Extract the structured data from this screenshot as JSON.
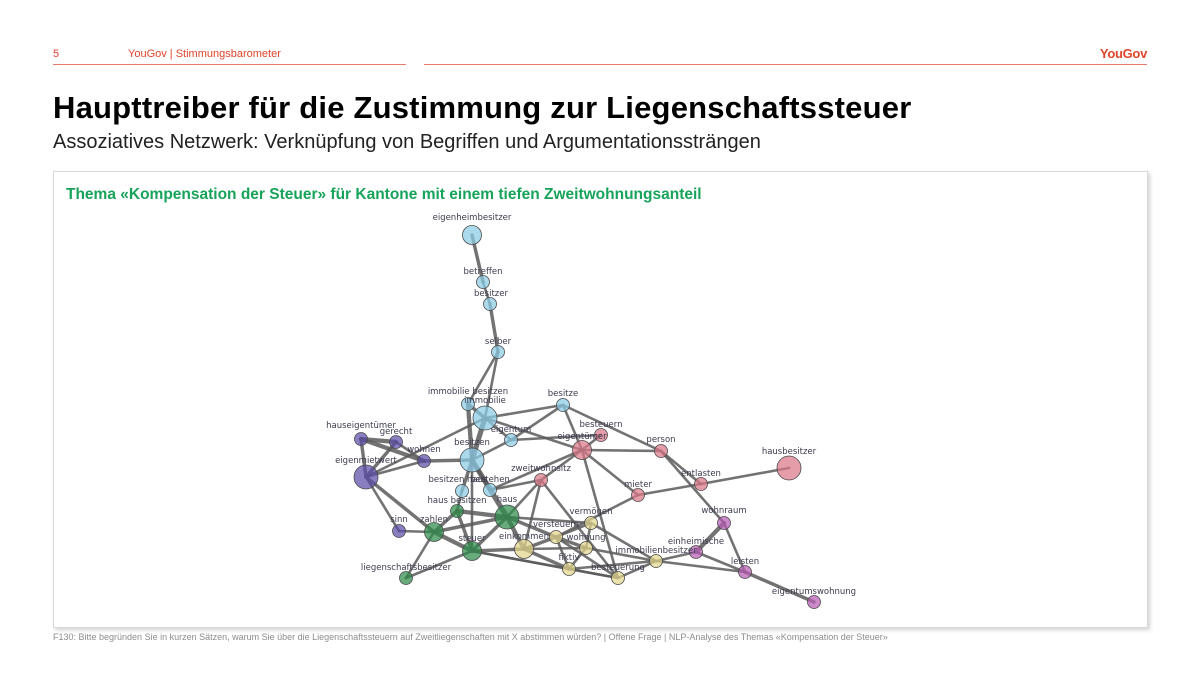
{
  "header": {
    "page_number": "5",
    "section": "YouGov | Stimmungsbarometer",
    "logo": "YouGov"
  },
  "title": "Haupttreiber für die Zustimmung zur Liegenschaftssteuer",
  "subtitle": "Assoziatives Netzwerk: Verknüpfung von Begriffen und Argumentationssträngen",
  "panel": {
    "title": "Thema «Kompensation der Steuer» für Kantone mit einem tiefen Zweitwohnungsanteil"
  },
  "colors": {
    "brand": "#e0442a",
    "panel_title": "#17a35a",
    "edge": "#5a5a5a",
    "blue": "#8ccce6",
    "purple": "#5b4ca6",
    "red": "#d97788",
    "green": "#2e8b4a",
    "yellow": "#e2d58c",
    "magenta": "#b75cb4"
  },
  "network": {
    "nodes": [
      {
        "id": "eigenheimbesitzer",
        "label": "eigenheimbesitzer",
        "group": "blue",
        "size": 3
      },
      {
        "id": "betreffen",
        "label": "betreffen",
        "group": "blue",
        "size": 2
      },
      {
        "id": "besitzer",
        "label": "besitzer",
        "group": "blue",
        "size": 2
      },
      {
        "id": "selber",
        "label": "selber",
        "group": "blue",
        "size": 2
      },
      {
        "id": "immobilie_besitzen",
        "label": "immobilie besitzen",
        "group": "blue",
        "size": 2
      },
      {
        "id": "immobilie",
        "label": "immobilie",
        "group": "blue",
        "size": 4
      },
      {
        "id": "besitze",
        "label": "besitze",
        "group": "blue",
        "size": 2
      },
      {
        "id": "eigentum",
        "label": "eigentum",
        "group": "blue",
        "size": 2
      },
      {
        "id": "besitzen",
        "label": "besitzen",
        "group": "blue",
        "size": 4
      },
      {
        "id": "besitzen_haus",
        "label": "besitzen haus",
        "group": "blue",
        "size": 2
      },
      {
        "id": "bestehen",
        "label": "bestehen",
        "group": "blue",
        "size": 2
      },
      {
        "id": "hauseigentuemer",
        "label": "hauseigentümer",
        "group": "purple",
        "size": 2
      },
      {
        "id": "gerecht",
        "label": "gerecht",
        "group": "purple",
        "size": 2
      },
      {
        "id": "wohnen",
        "label": "wohnen",
        "group": "purple",
        "size": 2
      },
      {
        "id": "eigenmietwert",
        "label": "eigenmietwert",
        "group": "purple",
        "size": 4
      },
      {
        "id": "sinn",
        "label": "sinn",
        "group": "purple",
        "size": 2
      },
      {
        "id": "besteuern",
        "label": "besteuern",
        "group": "red",
        "size": 2
      },
      {
        "id": "eigentuemer",
        "label": "eigentümer",
        "group": "red",
        "size": 3
      },
      {
        "id": "person",
        "label": "person",
        "group": "red",
        "size": 2
      },
      {
        "id": "hausbesitzer",
        "label": "hausbesitzer",
        "group": "red",
        "size": 4
      },
      {
        "id": "zweitwohnsitz",
        "label": "zweitwohnsitz",
        "group": "red",
        "size": 2
      },
      {
        "id": "mieter",
        "label": "mieter",
        "group": "red",
        "size": 2
      },
      {
        "id": "entlasten",
        "label": "entlasten",
        "group": "red",
        "size": 2
      },
      {
        "id": "haus_besitzen",
        "label": "haus besitzen",
        "group": "green",
        "size": 2
      },
      {
        "id": "haus",
        "label": "haus",
        "group": "green",
        "size": 4
      },
      {
        "id": "zahlen",
        "label": "zahlen",
        "group": "green",
        "size": 3
      },
      {
        "id": "steuer",
        "label": "steuer",
        "group": "green",
        "size": 3
      },
      {
        "id": "liegenschaftsbesitzer",
        "label": "liegenschaftsbesitzer",
        "group": "green",
        "size": 2
      },
      {
        "id": "vermoegen",
        "label": "vermögen",
        "group": "yellow",
        "size": 2
      },
      {
        "id": "versteuern",
        "label": "versteuern",
        "group": "yellow",
        "size": 2
      },
      {
        "id": "einkommen",
        "label": "einkommen",
        "group": "yellow",
        "size": 3
      },
      {
        "id": "wohnung",
        "label": "wohnung",
        "group": "yellow",
        "size": 2
      },
      {
        "id": "fiktiv",
        "label": "fiktiv",
        "group": "yellow",
        "size": 2
      },
      {
        "id": "besteuerung",
        "label": "besteuerung",
        "group": "yellow",
        "size": 2
      },
      {
        "id": "immobilienbesitzer",
        "label": "immobilienbesitzer",
        "group": "yellow",
        "size": 2
      },
      {
        "id": "wohnraum",
        "label": "wohnraum",
        "group": "magenta",
        "size": 2
      },
      {
        "id": "einheimische",
        "label": "einheimische",
        "group": "magenta",
        "size": 2
      },
      {
        "id": "leisten",
        "label": "leisten",
        "group": "magenta",
        "size": 2
      },
      {
        "id": "eigentumswohnung",
        "label": "eigentumswohnung",
        "group": "magenta",
        "size": 2
      }
    ],
    "edges": [
      [
        "eigenheimbesitzer",
        "betreffen",
        3
      ],
      [
        "betreffen",
        "besitzer",
        2
      ],
      [
        "besitzer",
        "selber",
        3
      ],
      [
        "selber",
        "immobilie",
        2
      ],
      [
        "selber",
        "immobilie_besitzen",
        2
      ],
      [
        "immobilie_besitzen",
        "immobilie",
        3
      ],
      [
        "immobilie_besitzen",
        "besitzen",
        4
      ],
      [
        "immobilie",
        "besitzen",
        5
      ],
      [
        "immobilie",
        "besitze",
        2
      ],
      [
        "immobilie",
        "eigentum",
        2
      ],
      [
        "immobilie",
        "eigentuemer",
        2
      ],
      [
        "besitze",
        "eigentum",
        2
      ],
      [
        "besitze",
        "eigentuemer",
        2
      ],
      [
        "besitze",
        "person",
        2
      ],
      [
        "eigentum",
        "besitzen",
        2
      ],
      [
        "eigentum",
        "besteuern",
        2
      ],
      [
        "besitzen",
        "besitzen_haus",
        3
      ],
      [
        "besitzen",
        "wohnen",
        3
      ],
      [
        "besitzen",
        "haus",
        5
      ],
      [
        "besitzen",
        "bestehen",
        3
      ],
      [
        "hauseigentuemer",
        "gerecht",
        4
      ],
      [
        "hauseigentuemer",
        "wohnen",
        4
      ],
      [
        "hauseigentuemer",
        "eigenmietwert",
        3
      ],
      [
        "gerecht",
        "wohnen",
        2
      ],
      [
        "gerecht",
        "eigenmietwert",
        3
      ],
      [
        "wohnen",
        "eigenmietwert",
        2
      ],
      [
        "eigenmietwert",
        "zahlen",
        3
      ],
      [
        "eigenmietwert",
        "sinn",
        2
      ],
      [
        "eigenmietwert",
        "immobilie",
        2
      ],
      [
        "eigentuemer",
        "besteuern",
        2
      ],
      [
        "eigentuemer",
        "person",
        2
      ],
      [
        "eigentuemer",
        "zweitwohnsitz",
        2
      ],
      [
        "eigentuemer",
        "mieter",
        2
      ],
      [
        "eigentuemer",
        "bestehen",
        2
      ],
      [
        "person",
        "entlasten",
        2
      ],
      [
        "person",
        "wohnraum",
        2
      ],
      [
        "entlasten",
        "hausbesitzer",
        2
      ],
      [
        "entlasten",
        "mieter",
        2
      ],
      [
        "zweitwohnsitz",
        "haus",
        2
      ],
      [
        "zweitwohnsitz",
        "besteuerung",
        2
      ],
      [
        "zweitwohnsitz",
        "einkommen",
        2
      ],
      [
        "zweitwohnsitz",
        "bestehen",
        2
      ],
      [
        "mieter",
        "versteuern",
        2
      ],
      [
        "besitzen_haus",
        "haus_besitzen",
        2
      ],
      [
        "haus_besitzen",
        "haus",
        4
      ],
      [
        "haus_besitzen",
        "zahlen",
        3
      ],
      [
        "haus_besitzen",
        "steuer",
        3
      ],
      [
        "haus",
        "zahlen",
        3
      ],
      [
        "haus",
        "steuer",
        3
      ],
      [
        "haus",
        "einkommen",
        4
      ],
      [
        "haus",
        "versteuern",
        3
      ],
      [
        "haus",
        "vermoegen",
        2
      ],
      [
        "zahlen",
        "steuer",
        4
      ],
      [
        "zahlen",
        "sinn",
        2
      ],
      [
        "zahlen",
        "liegenschaftsbesitzer",
        2
      ],
      [
        "steuer",
        "einkommen",
        3
      ],
      [
        "steuer",
        "fiktiv",
        2
      ],
      [
        "steuer",
        "liegenschaftsbesitzer",
        2
      ],
      [
        "steuer",
        "besteuerung",
        2
      ],
      [
        "steuer",
        "besitzen",
        2
      ],
      [
        "einkommen",
        "versteuern",
        3
      ],
      [
        "einkommen",
        "wohnung",
        2
      ],
      [
        "einkommen",
        "fiktiv",
        3
      ],
      [
        "versteuern",
        "vermoegen",
        2
      ],
      [
        "versteuern",
        "wohnung",
        3
      ],
      [
        "versteuern",
        "fiktiv",
        2
      ],
      [
        "versteuern",
        "besteuerung",
        2
      ],
      [
        "vermoegen",
        "immobilienbesitzer",
        2
      ],
      [
        "vermoegen",
        "wohnung",
        2
      ],
      [
        "wohnung",
        "fiktiv",
        2
      ],
      [
        "wohnung",
        "immobilienbesitzer",
        2
      ],
      [
        "fiktiv",
        "immobilienbesitzer",
        2
      ],
      [
        "fiktiv",
        "besteuerung",
        2
      ],
      [
        "besteuerung",
        "immobilienbesitzer",
        2
      ],
      [
        "besteuerung",
        "eigentuemer",
        2
      ],
      [
        "immobilienbesitzer",
        "einheimische",
        2
      ],
      [
        "immobilienbesitzer",
        "leisten",
        2
      ],
      [
        "einheimische",
        "wohnraum",
        4
      ],
      [
        "einheimische",
        "leisten",
        2
      ],
      [
        "wohnraum",
        "leisten",
        2
      ],
      [
        "leisten",
        "eigentumswohnung",
        3
      ]
    ]
  },
  "footnote": "F130: Bitte begründen Sie in kurzen Sätzen, warum Sie über die Liegenschaftssteuern auf Zweitliegenschaften mit X abstimmen würden? | Offene Frage | NLP-Analyse des Themas «Kompensation der Steuer»"
}
